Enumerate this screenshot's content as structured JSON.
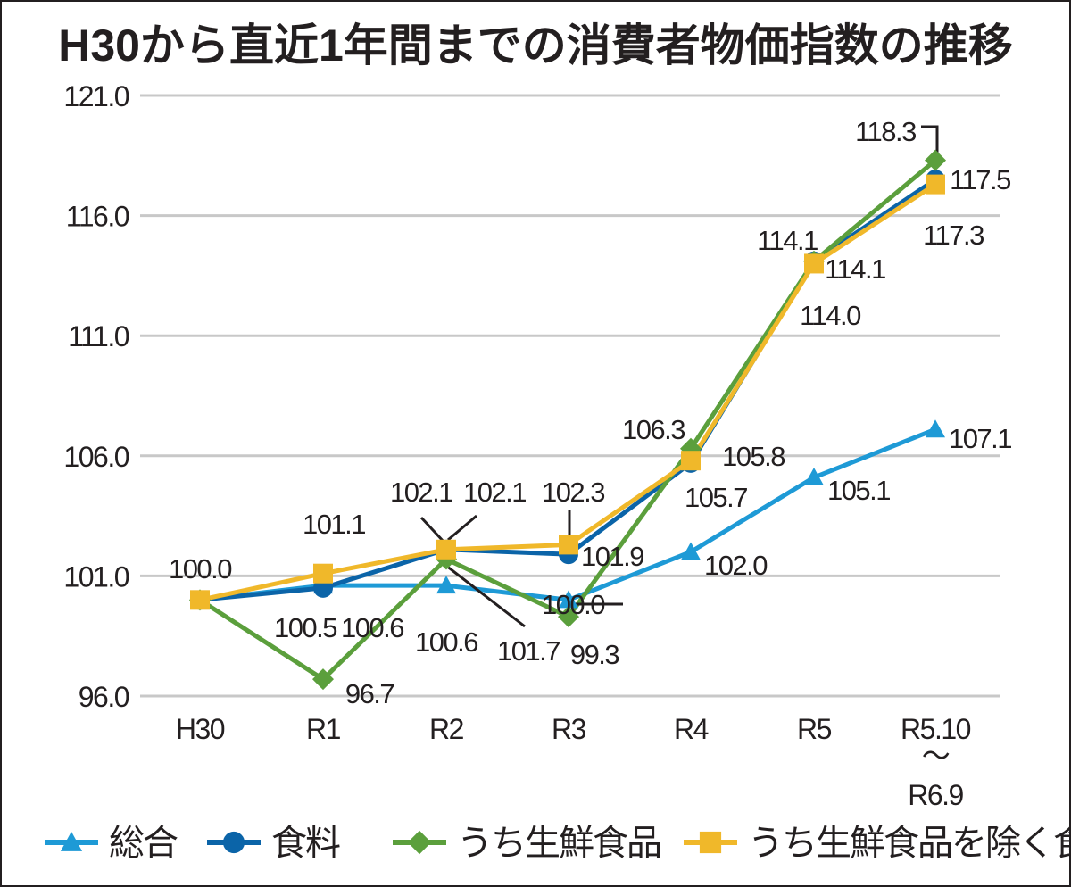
{
  "chart_data": {
    "type": "line",
    "title": "H30から直近1年間までの消費者物価指数の推移",
    "categories": [
      "H30",
      "R1",
      "R2",
      "R3",
      "R4",
      "R5",
      "R5.10〜R6.9"
    ],
    "category_labels": [
      [
        "H30"
      ],
      [
        "R1"
      ],
      [
        "R2"
      ],
      [
        "R3"
      ],
      [
        "R4"
      ],
      [
        "R5"
      ],
      [
        "R5.10",
        "〜",
        "R6.9"
      ]
    ],
    "xlabel": "",
    "ylabel": "",
    "ylim": [
      96.0,
      121.0
    ],
    "yticks": [
      "96.0",
      "101.0",
      "106.0",
      "111.0",
      "116.0",
      "121.0"
    ],
    "grid": true,
    "legend_position": "bottom",
    "series": [
      {
        "name": "総合",
        "color": "#1e9ad6",
        "marker": "triangle",
        "values": [
          100.0,
          100.6,
          100.6,
          100.0,
          102.0,
          105.1,
          107.1
        ]
      },
      {
        "name": "食料",
        "color": "#0b64a8",
        "marker": "circle",
        "values": [
          100.0,
          100.5,
          102.1,
          101.9,
          105.7,
          114.1,
          117.5
        ]
      },
      {
        "name": "うち生鮮食品",
        "color": "#5b9f3c",
        "marker": "diamond",
        "values": [
          100.0,
          96.7,
          101.7,
          99.3,
          106.3,
          114.1,
          118.3
        ]
      },
      {
        "name": "うち生鮮食品を除く食料",
        "color": "#f0b82a",
        "marker": "square",
        "values": [
          100.0,
          101.1,
          102.1,
          102.3,
          105.8,
          114.0,
          117.3
        ]
      }
    ],
    "data_labels": {
      "shared_first": "100.0",
      "points": [
        [
          "100.6",
          "100.5",
          "96.7",
          "101.1"
        ],
        [
          "100.6",
          "102.1",
          "101.7",
          "102.1"
        ],
        [
          "100.0",
          "101.9",
          "99.3",
          "102.3"
        ],
        [
          "102.0",
          "105.7",
          "106.3",
          "105.8"
        ],
        [
          "105.1",
          "114.1",
          "114.1",
          "114.0"
        ],
        [
          "107.1",
          "117.5",
          "118.3",
          "117.3"
        ]
      ]
    }
  }
}
